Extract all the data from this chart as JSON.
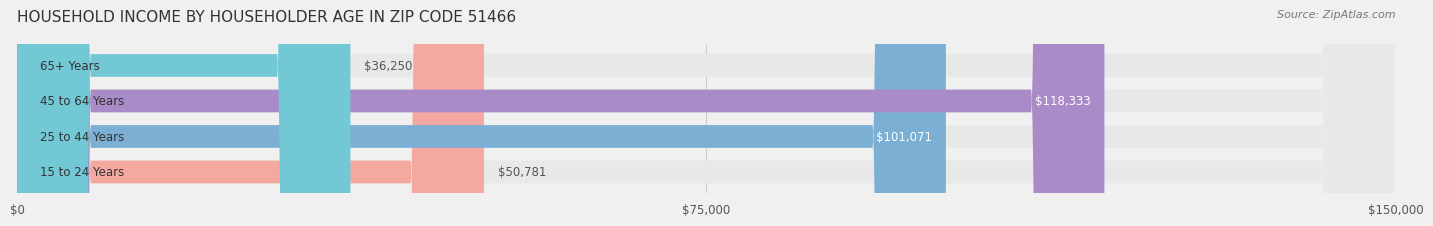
{
  "title": "HOUSEHOLD INCOME BY HOUSEHOLDER AGE IN ZIP CODE 51466",
  "source": "Source: ZipAtlas.com",
  "categories": [
    "15 to 24 Years",
    "25 to 44 Years",
    "45 to 64 Years",
    "65+ Years"
  ],
  "values": [
    50781,
    101071,
    118333,
    36250
  ],
  "bar_colors": [
    "#f4a9a0",
    "#7bafd4",
    "#a98bc8",
    "#72c8d4"
  ],
  "bar_labels": [
    "$50,781",
    "$101,071",
    "$118,333",
    "$36,250"
  ],
  "xlim": [
    0,
    150000
  ],
  "xticks": [
    0,
    75000,
    150000
  ],
  "xticklabels": [
    "$0",
    "$75,000",
    "$150,000"
  ],
  "background_color": "#f0f0f0",
  "bar_bg_color": "#e8e8e8",
  "title_fontsize": 11,
  "source_fontsize": 8,
  "label_fontsize": 8.5,
  "tick_fontsize": 8.5
}
